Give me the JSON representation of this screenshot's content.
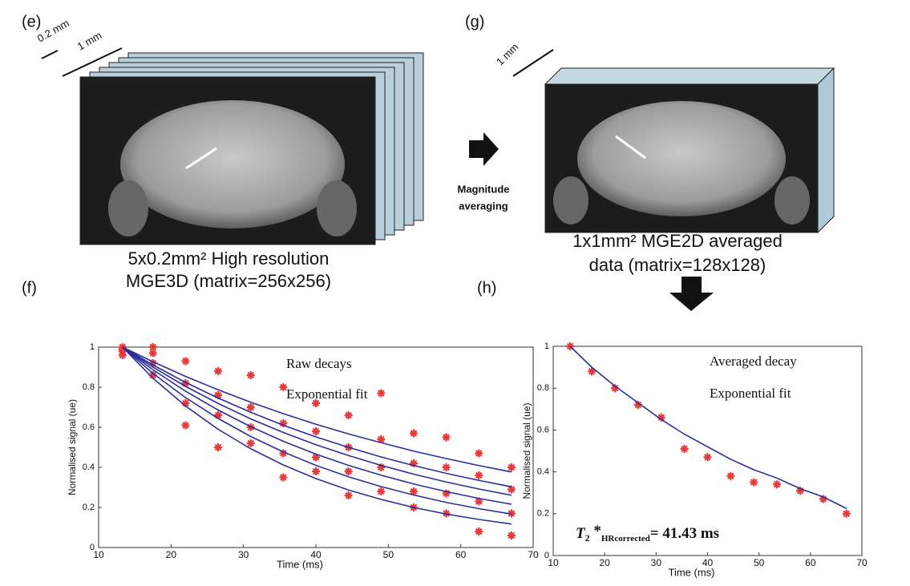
{
  "panels": {
    "e": {
      "label": "(e)",
      "dims": [
        "0.2 mm",
        "1 mm"
      ],
      "caption": [
        "5x0.2mm² High resolution",
        "MGE3D (matrix=256x256)"
      ]
    },
    "g": {
      "label": "(g)",
      "dims": [
        "1 mm"
      ],
      "caption": [
        "1x1mm² MGE2D averaged",
        "data (matrix=128x128)"
      ]
    },
    "f": {
      "label": "(f)"
    },
    "h": {
      "label": "(h)"
    }
  },
  "arrow_label": [
    "Magnitude",
    "averaging"
  ],
  "chart_data": [
    {
      "type": "scatter-lines",
      "xlabel": "Time (ms)",
      "ylabel": "Normalised signal (ue)",
      "xlim": [
        10,
        70
      ],
      "xticks": [
        10,
        20,
        30,
        40,
        50,
        60,
        70
      ],
      "ylim": [
        0,
        1
      ],
      "yticks": [
        0,
        0.2,
        0.4,
        0.6,
        0.8,
        1
      ],
      "series": [
        {
          "name": "Raw decays",
          "kind": "scatter",
          "color": "#e8393a",
          "x": [
            13.3,
            13.3,
            13.3,
            13.3,
            17.5,
            17.5,
            17.5,
            17.5,
            22,
            22,
            22,
            22,
            26.5,
            26.5,
            26.5,
            26.5,
            31,
            31,
            31,
            31,
            35.5,
            35.5,
            35.5,
            35.5,
            40,
            40,
            40,
            40,
            44.5,
            44.5,
            44.5,
            44.5,
            49,
            49,
            49,
            49,
            53.5,
            53.5,
            53.5,
            53.5,
            58,
            58,
            58,
            58,
            62.5,
            62.5,
            62.5,
            62.5,
            67,
            67,
            67,
            67
          ],
          "values": [
            1.0,
            0.98,
            0.96,
            0.99,
            1.0,
            0.92,
            0.86,
            0.97,
            0.93,
            0.82,
            0.72,
            0.61,
            0.88,
            0.76,
            0.66,
            0.5,
            0.86,
            0.7,
            0.6,
            0.52,
            0.8,
            0.62,
            0.47,
            0.35,
            0.72,
            0.58,
            0.45,
            0.38,
            0.66,
            0.5,
            0.38,
            0.26,
            0.77,
            0.54,
            0.4,
            0.28,
            0.57,
            0.42,
            0.28,
            0.2,
            0.55,
            0.4,
            0.27,
            0.17,
            0.47,
            0.36,
            0.23,
            0.08,
            0.4,
            0.29,
            0.17,
            0.06
          ]
        },
        {
          "name": "Exponential fit",
          "kind": "lines",
          "color": "#2b2f9e",
          "x": [
            13.3,
            17.5,
            22,
            26.5,
            31,
            35.5,
            40,
            44.5,
            49,
            53.5,
            58,
            62.5,
            67
          ],
          "values": [
            [
              1,
              0.845,
              0.706,
              0.59,
              0.493,
              0.412,
              0.344,
              0.287,
              0.24,
              0.2,
              0.167,
              0.14,
              0.117
            ],
            [
              1,
              0.869,
              0.748,
              0.644,
              0.554,
              0.477,
              0.41,
              0.353,
              0.304,
              0.262,
              0.225,
              0.194,
              0.167
            ],
            [
              1,
              0.887,
              0.78,
              0.686,
              0.603,
              0.53,
              0.466,
              0.41,
              0.361,
              0.317,
              0.279,
              0.245,
              0.216
            ],
            [
              1,
              0.9,
              0.804,
              0.719,
              0.642,
              0.574,
              0.513,
              0.459,
              0.41,
              0.366,
              0.327,
              0.292,
              0.261
            ],
            [
              1,
              0.911,
              0.824,
              0.746,
              0.675,
              0.61,
              0.552,
              0.5,
              0.452,
              0.409,
              0.37,
              0.335,
              0.303
            ],
            [
              1,
              0.927,
              0.854,
              0.787,
              0.725,
              0.668,
              0.615,
              0.567,
              0.523,
              0.481,
              0.444,
              0.409,
              0.377
            ]
          ]
        }
      ]
    },
    {
      "type": "scatter-lines",
      "xlabel": "Time (ms)",
      "ylabel": "Normalised signal (ue)",
      "xlim": [
        10,
        70
      ],
      "xticks": [
        10,
        20,
        30,
        40,
        50,
        60,
        70
      ],
      "ylim": [
        0,
        1
      ],
      "yticks": [
        0,
        0.2,
        0.4,
        0.6,
        0.8,
        1
      ],
      "annotation": {
        "symbol": "T",
        "sub": "2",
        "sup": " *",
        "sub2": "HRcorrected",
        "rest": "= 41.43 ms"
      },
      "series": [
        {
          "name": "Averaged decay",
          "kind": "scatter",
          "color": "#e8393a",
          "x": [
            13.3,
            17.5,
            22,
            26.5,
            31,
            35.5,
            40,
            44.5,
            49,
            53.5,
            58,
            62.5,
            67
          ],
          "values": [
            1.0,
            0.88,
            0.8,
            0.72,
            0.66,
            0.51,
            0.47,
            0.38,
            0.35,
            0.34,
            0.31,
            0.27,
            0.2
          ]
        },
        {
          "name": "Exponential fit",
          "kind": "lines",
          "color": "#2b2f9e",
          "x": [
            13.3,
            17.5,
            22,
            26.5,
            31,
            35.5,
            40,
            44.5,
            49,
            53.5,
            58,
            62.5,
            67
          ],
          "values": [
            [
              1.0,
              0.9,
              0.81,
              0.73,
              0.65,
              0.58,
              0.52,
              0.46,
              0.41,
              0.37,
              0.32,
              0.28,
              0.225
            ]
          ]
        }
      ]
    }
  ]
}
